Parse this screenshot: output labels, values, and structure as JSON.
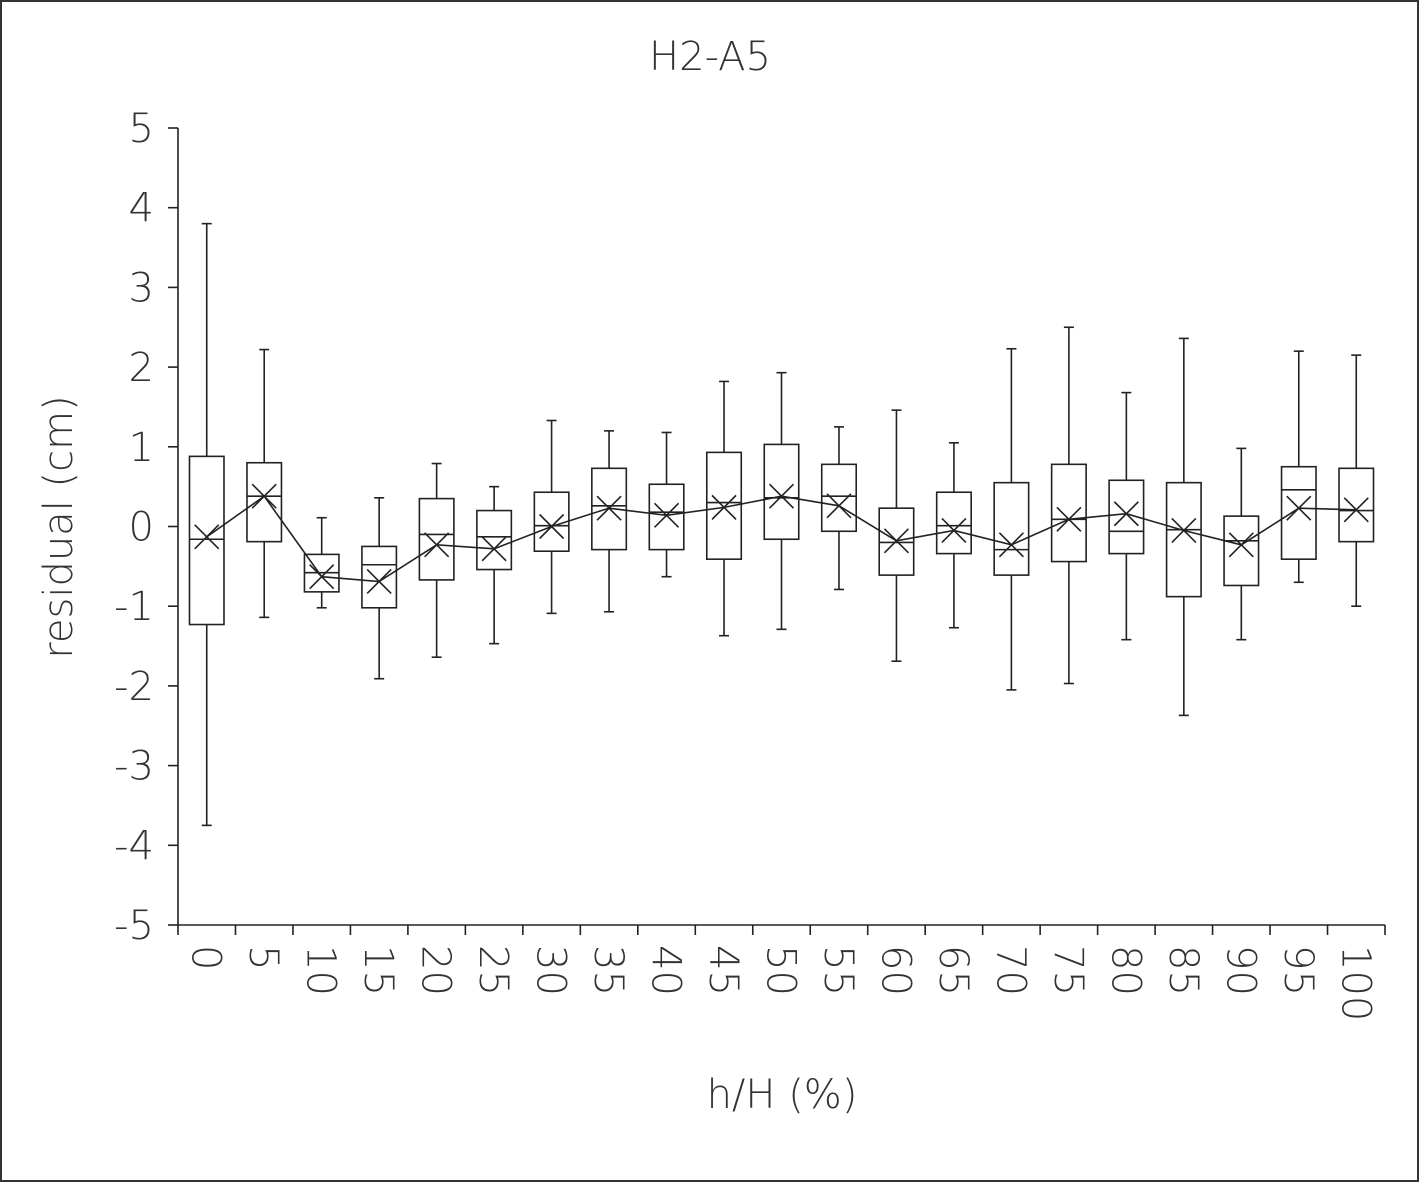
{
  "chart_data": {
    "type": "box",
    "title": "H2-A5",
    "x_label": "h/H (%)",
    "y_label": "residual (cm)",
    "categories": [
      "0",
      "5",
      "10",
      "15",
      "20",
      "25",
      "30",
      "35",
      "40",
      "45",
      "50",
      "55",
      "60",
      "65",
      "70",
      "75",
      "80",
      "85",
      "90",
      "95",
      "100"
    ],
    "whisker_low": [
      -3.75,
      -1.14,
      -1.02,
      -1.91,
      -1.64,
      -1.47,
      -1.09,
      -1.07,
      -0.63,
      -1.37,
      -1.29,
      -0.79,
      -1.69,
      -1.27,
      -2.05,
      -1.97,
      -1.42,
      -2.37,
      -1.42,
      -0.7,
      -1.0
    ],
    "q1": [
      -1.23,
      -0.19,
      -0.82,
      -1.02,
      -0.67,
      -0.54,
      -0.31,
      -0.29,
      -0.29,
      -0.41,
      -0.16,
      -0.06,
      -0.61,
      -0.34,
      -0.61,
      -0.44,
      -0.34,
      -0.88,
      -0.74,
      -0.41,
      -0.19
    ],
    "median": [
      -0.16,
      0.38,
      -0.58,
      -0.48,
      -0.1,
      -0.13,
      0.01,
      0.26,
      0.18,
      0.3,
      0.36,
      0.38,
      -0.2,
      0.01,
      -0.29,
      0.09,
      -0.06,
      -0.04,
      -0.18,
      0.46,
      0.2
    ],
    "q3": [
      0.88,
      0.8,
      -0.35,
      -0.25,
      0.35,
      0.2,
      0.43,
      0.73,
      0.53,
      0.93,
      1.03,
      0.78,
      0.23,
      0.43,
      0.55,
      0.78,
      0.58,
      0.55,
      0.13,
      0.75,
      0.73
    ],
    "whisker_high": [
      3.8,
      2.22,
      0.11,
      0.36,
      0.79,
      0.5,
      1.33,
      1.2,
      1.18,
      1.82,
      1.93,
      1.25,
      1.46,
      1.05,
      2.23,
      2.5,
      1.68,
      2.36,
      0.98,
      2.2,
      2.15
    ],
    "mean": [
      -0.13,
      0.38,
      -0.63,
      -0.69,
      -0.23,
      -0.28,
      0,
      0.23,
      0.14,
      0.24,
      0.38,
      0.26,
      -0.18,
      -0.05,
      -0.23,
      0.09,
      0.16,
      -0.05,
      -0.23,
      0.23,
      0.21
    ],
    "color": "#222222",
    "ylim": [
      -5,
      5
    ],
    "yticks": [
      -5,
      -4,
      -3,
      -2,
      -1,
      0,
      1,
      2,
      3,
      4,
      5
    ]
  }
}
